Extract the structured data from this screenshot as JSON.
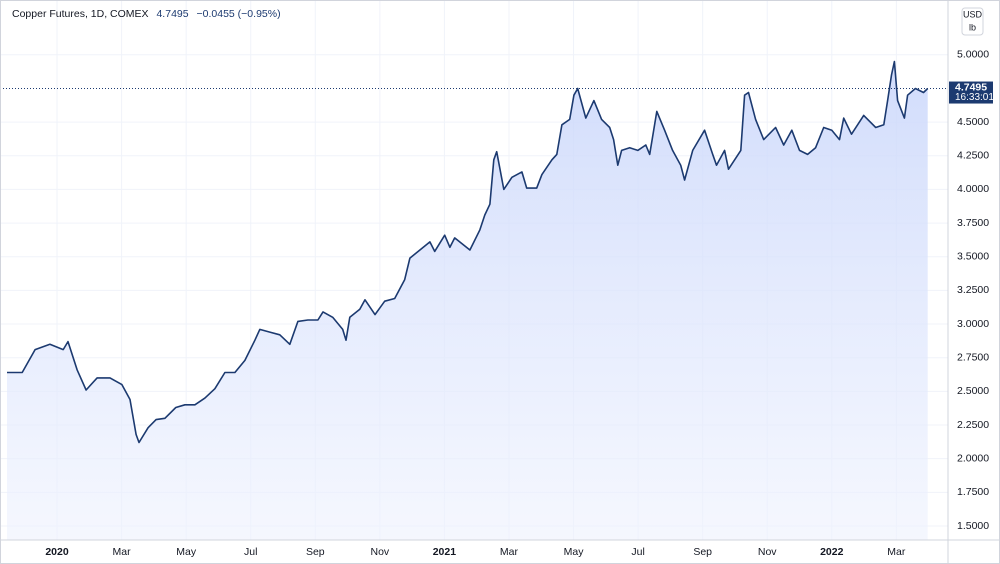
{
  "chart_data": {
    "type": "line",
    "title": "Copper Futures, 1D, COMEX",
    "change": "−0.0455 (−0.95%)",
    "currency": "USD",
    "unit": "lb",
    "countdown": "16:33:01",
    "last_price": 4.7495,
    "color": "#1c3a70",
    "grid": true,
    "xlim": [
      -1.55,
      27.6
    ],
    "ylim": [
      1.396,
      5.37
    ],
    "xticks": [
      {
        "value": 0,
        "label": "2020"
      },
      {
        "value": 2,
        "label": "Mar"
      },
      {
        "value": 4,
        "label": "May"
      },
      {
        "value": 6,
        "label": "Jul"
      },
      {
        "value": 8,
        "label": "Sep"
      },
      {
        "value": 10,
        "label": "Nov"
      },
      {
        "value": 12,
        "label": "2021"
      },
      {
        "value": 14,
        "label": "Mar"
      },
      {
        "value": 16,
        "label": "May"
      },
      {
        "value": 18,
        "label": "Jul"
      },
      {
        "value": 20,
        "label": "Sep"
      },
      {
        "value": 22,
        "label": "Nov"
      },
      {
        "value": 24,
        "label": "2022"
      },
      {
        "value": 26,
        "label": "Mar"
      }
    ],
    "yticks": [
      {
        "value": 1.5,
        "label": "1.5000"
      },
      {
        "value": 1.75,
        "label": "1.7500"
      },
      {
        "value": 2,
        "label": "2.0000"
      },
      {
        "value": 2.25,
        "label": "2.2500"
      },
      {
        "value": 2.5,
        "label": "2.5000"
      },
      {
        "value": 2.75,
        "label": "2.7500"
      },
      {
        "value": 3,
        "label": "3.0000"
      },
      {
        "value": 3.25,
        "label": "3.2500"
      },
      {
        "value": 3.5,
        "label": "3.5000"
      },
      {
        "value": 3.75,
        "label": "3.7500"
      },
      {
        "value": 4,
        "label": "4.0000"
      },
      {
        "value": 4.25,
        "label": "4.2500"
      },
      {
        "value": 4.5,
        "label": "4.5000"
      },
      {
        "value": 5,
        "label": "5.0000"
      }
    ],
    "x": [
      -1.55,
      -1.08,
      -0.68,
      -0.22,
      0.19,
      0.34,
      0.62,
      0.9,
      1.24,
      1.64,
      2.01,
      2.26,
      2.45,
      2.54,
      2.82,
      3.07,
      3.34,
      3.68,
      3.96,
      4.27,
      4.58,
      4.89,
      5.2,
      5.51,
      5.82,
      6.13,
      6.28,
      6.59,
      6.9,
      7.21,
      7.46,
      7.77,
      8.08,
      8.24,
      8.54,
      8.85,
      8.95,
      9.07,
      9.38,
      9.54,
      9.85,
      10.15,
      10.46,
      10.77,
      10.93,
      11.24,
      11.55,
      11.7,
      12.01,
      12.17,
      12.32,
      12.79,
      13.1,
      13.25,
      13.41,
      13.53,
      13.62,
      13.84,
      14.09,
      14.4,
      14.55,
      14.86,
      15.02,
      15.33,
      15.48,
      15.64,
      15.88,
      16.01,
      16.13,
      16.38,
      16.63,
      16.87,
      17.12,
      17.24,
      17.37,
      17.49,
      17.74,
      17.99,
      18.24,
      18.36,
      18.58,
      18.82,
      19.07,
      19.32,
      19.44,
      19.69,
      20.06,
      20.31,
      20.43,
      20.68,
      20.8,
      21.18,
      21.3,
      21.42,
      21.64,
      21.89,
      22.26,
      22.51,
      22.76,
      23.0,
      23.25,
      23.5,
      23.75,
      24.0,
      24.24,
      24.37,
      24.61,
      24.99,
      25.36,
      25.61,
      25.73,
      25.85,
      25.94,
      26.04,
      26.25,
      26.35,
      26.59,
      26.84,
      26.97
    ],
    "values": [
      2.64,
      2.64,
      2.81,
      2.85,
      2.81,
      2.87,
      2.66,
      2.51,
      2.6,
      2.6,
      2.55,
      2.44,
      2.18,
      2.12,
      2.23,
      2.29,
      2.3,
      2.38,
      2.4,
      2.4,
      2.45,
      2.52,
      2.64,
      2.64,
      2.73,
      2.88,
      2.96,
      2.94,
      2.92,
      2.85,
      3.02,
      3.03,
      3.03,
      3.09,
      3.05,
      2.96,
      2.88,
      3.05,
      3.11,
      3.18,
      3.07,
      3.17,
      3.19,
      3.33,
      3.49,
      3.55,
      3.61,
      3.54,
      3.66,
      3.57,
      3.64,
      3.55,
      3.7,
      3.81,
      3.89,
      4.22,
      4.28,
      4.0,
      4.09,
      4.13,
      4.01,
      4.01,
      4.11,
      4.22,
      4.26,
      4.48,
      4.52,
      4.7,
      4.75,
      4.53,
      4.66,
      4.52,
      4.46,
      4.37,
      4.18,
      4.29,
      4.31,
      4.29,
      4.33,
      4.26,
      4.58,
      4.44,
      4.29,
      4.18,
      4.07,
      4.29,
      4.44,
      4.26,
      4.18,
      4.29,
      4.15,
      4.29,
      4.7,
      4.72,
      4.52,
      4.37,
      4.46,
      4.33,
      4.44,
      4.29,
      4.26,
      4.31,
      4.46,
      4.44,
      4.37,
      4.53,
      4.41,
      4.55,
      4.46,
      4.48,
      4.66,
      4.85,
      4.95,
      4.66,
      4.53,
      4.7,
      4.75,
      4.72,
      4.7495
    ]
  }
}
